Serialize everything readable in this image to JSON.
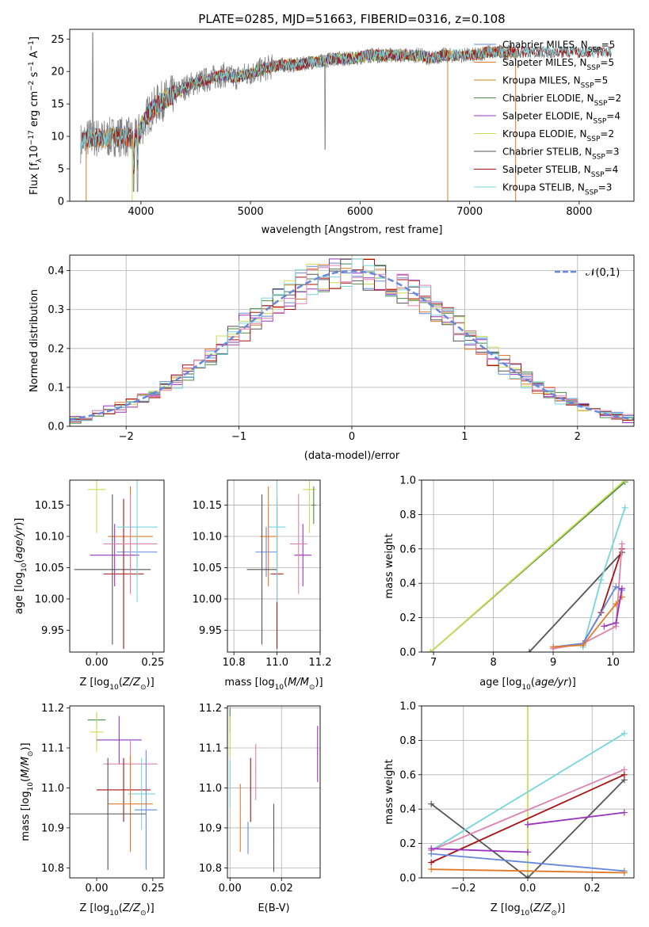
{
  "figure_title": "PLATE=0285, MJD=51663, FIBERID=0316, z=0.108",
  "series_colors": {
    "chabrier_miles": "#6688dd",
    "salpeter_miles": "#e07a2a",
    "kroupa_miles": "#cc8822",
    "chabrier_elodie": "#4a8a4a",
    "salpeter_elodie": "#9933bb",
    "kroupa_elodie": "#ccdd55",
    "chabrier_stelib": "#555555",
    "salpeter_stelib": "#aa1111",
    "kroupa_stelib": "#77d5dd",
    "pink": "#e080b0"
  },
  "chart_data": [
    {
      "id": "spectrum",
      "type": "line",
      "xlabel": "wavelength [Angstrom, rest frame]",
      "ylabel": "Flux [f_λ 10^-17 erg cm^-2 s^-1 A^-1]",
      "xlim": [
        3350,
        8500
      ],
      "ylim": [
        0,
        26.5
      ],
      "xticks": [
        4000,
        5000,
        6000,
        7000,
        8000
      ],
      "yticks": [
        0,
        5,
        10,
        15,
        20,
        25
      ],
      "grid": false,
      "legend_position": "right",
      "legend": [
        "Chabrier MILES, N_SSP=5",
        "Salpeter MILES, N_SSP=5",
        "Kroupa MILES, N_SSP=5",
        "Chabrier ELODIE, N_SSP=2",
        "Salpeter ELODIE, N_SSP=4",
        "Kroupa ELODIE, N_SSP=2",
        "Chabrier STELIB, N_SSP=3",
        "Salpeter STELIB, N_SSP=4",
        "Kroupa STELIB, N_SSP=3"
      ],
      "data_curve": {
        "x": [
          3450,
          3550,
          3650,
          3750,
          3850,
          3950,
          4050,
          4150,
          4250,
          4350,
          4450,
          4550,
          4650,
          4750,
          4850,
          4950,
          5050,
          5150,
          5250,
          5350,
          5450,
          5550,
          5650,
          5750,
          5850,
          5950,
          6050,
          6150,
          6250,
          6350,
          6450,
          6550,
          6650,
          6750,
          6850,
          6950,
          7050,
          7150,
          7250,
          7350,
          7450,
          7550,
          7650,
          7750,
          7850,
          7950,
          8050,
          8150,
          8250
        ],
        "y": [
          9,
          10,
          9.5,
          10,
          10,
          9.5,
          13,
          15,
          16,
          17,
          18,
          18.5,
          19,
          19.5,
          19,
          19.5,
          20,
          20.5,
          21,
          21,
          21,
          21.5,
          21.5,
          22,
          22,
          22,
          22.5,
          22.5,
          22.5,
          22.5,
          22.5,
          22.5,
          22,
          22.5,
          22.5,
          22.5,
          22.5,
          23,
          23,
          23,
          23,
          23,
          23,
          23,
          23,
          23,
          23,
          23,
          23
        ]
      }
    },
    {
      "id": "residuals",
      "type": "histogram",
      "xlabel": "(data-model)/error",
      "ylabel": "Normed distribution",
      "xlim": [
        -2.5,
        2.5
      ],
      "ylim": [
        0,
        0.44
      ],
      "xticks": [
        -2,
        -1,
        0,
        1,
        2
      ],
      "yticks": [
        0.0,
        0.1,
        0.2,
        0.3,
        0.4
      ],
      "grid": true,
      "legend": [
        "𝒩(0,1)"
      ],
      "legend_position": "top-right",
      "bin_width": 0.1,
      "bin_start": -2.5
    },
    {
      "id": "age_vs_Z",
      "type": "scatter",
      "xlabel": "Z [log10(Z/Z⊙)]",
      "ylabel": "age  [log10(age/yr)]",
      "xlim": [
        -0.12,
        0.3
      ],
      "ylim": [
        9.915,
        10.19
      ],
      "xticks": [
        0.0,
        0.25
      ],
      "yticks": [
        9.95,
        10.0,
        10.05,
        10.1,
        10.15
      ],
      "grid": false,
      "points": [
        {
          "x": 0.18,
          "y": 10.075,
          "xerr": 0.09,
          "yerr": 0.04,
          "series": "chabrier_miles"
        },
        {
          "x": 0.15,
          "y": 10.1,
          "xerr": 0.1,
          "yerr": 0.08,
          "series": "salpeter_miles"
        },
        {
          "x": 0.08,
          "y": 10.07,
          "xerr": 0.11,
          "yerr": 0.05,
          "series": "salpeter_elodie"
        },
        {
          "x": 0.0,
          "y": 10.175,
          "xerr": 0.04,
          "yerr": 0.07,
          "series": "kroupa_elodie"
        },
        {
          "x": 0.07,
          "y": 10.047,
          "xerr": 0.17,
          "yerr": 0.12,
          "series": "chabrier_stelib"
        },
        {
          "x": 0.12,
          "y": 10.04,
          "xerr": 0.09,
          "yerr": 0.12,
          "series": "salpeter_stelib"
        },
        {
          "x": 0.18,
          "y": 10.115,
          "xerr": 0.09,
          "yerr": 0.12,
          "series": "kroupa_stelib"
        },
        {
          "x": 0.15,
          "y": 10.088,
          "xerr": 0.12,
          "yerr": 0.08,
          "series": "pink"
        }
      ]
    },
    {
      "id": "age_vs_mass",
      "type": "scatter",
      "xlabel": "mass [log10(M/M⊙)]",
      "ylabel": "",
      "xlim": [
        10.77,
        11.2
      ],
      "ylim": [
        9.915,
        10.19
      ],
      "xticks": [
        10.8,
        11.0,
        11.2
      ],
      "yticks": [
        9.95,
        10.0,
        10.05,
        10.1,
        10.15
      ],
      "grid": true,
      "points": [
        {
          "x": 10.95,
          "y": 10.075,
          "xerr": 0.05,
          "yerr": 0.04,
          "series": "chabrier_miles"
        },
        {
          "x": 10.96,
          "y": 10.1,
          "xerr": 0.04,
          "yerr": 0.08,
          "series": "salpeter_miles"
        },
        {
          "x": 11.12,
          "y": 10.07,
          "xerr": 0.04,
          "yerr": 0.05,
          "series": "salpeter_elodie"
        },
        {
          "x": 11.15,
          "y": 10.175,
          "xerr": 0.03,
          "yerr": 0.07,
          "series": "kroupa_elodie"
        },
        {
          "x": 11.17,
          "y": 10.15,
          "xerr": 0.01,
          "yerr": 0.03,
          "series": "chabrier_elodie"
        },
        {
          "x": 10.93,
          "y": 10.047,
          "xerr": 0.07,
          "yerr": 0.12,
          "series": "chabrier_stelib"
        },
        {
          "x": 11.0,
          "y": 10.04,
          "xerr": 0.03,
          "yerr": 0.12,
          "series": "salpeter_stelib"
        },
        {
          "x": 11.0,
          "y": 10.115,
          "xerr": 0.04,
          "yerr": 0.12,
          "series": "kroupa_stelib"
        },
        {
          "x": 11.1,
          "y": 10.088,
          "xerr": 0.04,
          "yerr": 0.08,
          "series": "pink"
        }
      ]
    },
    {
      "id": "weight_vs_age",
      "type": "line",
      "xlabel": "age  [log10(age/yr)]",
      "ylabel": "mass weight",
      "xlim": [
        6.8,
        10.35
      ],
      "ylim": [
        0,
        1.0
      ],
      "xticks": [
        7,
        8,
        9,
        10
      ],
      "yticks": [
        0.0,
        0.2,
        0.4,
        0.6,
        0.8,
        1.0
      ],
      "grid": true,
      "series": [
        {
          "series": "chabrier_elodie",
          "x": [
            6.95,
            10.2
          ],
          "y": [
            0.0,
            0.99
          ]
        },
        {
          "series": "kroupa_elodie",
          "x": [
            6.95,
            10.2
          ],
          "y": [
            0.0,
            1.0
          ]
        },
        {
          "series": "chabrier_stelib",
          "x": [
            8.6,
            10.15
          ],
          "y": [
            0.0,
            0.58
          ]
        },
        {
          "series": "kroupa_stelib",
          "x": [
            9.5,
            9.8,
            10.2
          ],
          "y": [
            0.03,
            0.42,
            0.84
          ]
        },
        {
          "series": "salpeter_stelib",
          "x": [
            9.5,
            9.8,
            10.15
          ],
          "y": [
            0.05,
            0.23,
            0.6
          ]
        },
        {
          "series": "pink",
          "x": [
            9.0,
            9.5,
            10.05,
            10.15
          ],
          "y": [
            0.02,
            0.05,
            0.15,
            0.63
          ]
        },
        {
          "series": "chabrier_miles",
          "x": [
            9.0,
            9.5,
            10.05,
            10.15
          ],
          "y": [
            0.03,
            0.05,
            0.38,
            0.36
          ]
        },
        {
          "series": "salpeter_miles",
          "x": [
            9.0,
            9.5,
            10.05,
            10.15
          ],
          "y": [
            0.03,
            0.04,
            0.28,
            0.32
          ]
        },
        {
          "series": "salpeter_elodie",
          "x": [
            9.85,
            10.05,
            10.15
          ],
          "y": [
            0.15,
            0.17,
            0.37
          ]
        }
      ]
    },
    {
      "id": "mass_vs_Z",
      "type": "scatter",
      "xlabel": "Z [log10(Z/Z⊙)]",
      "ylabel": "mass [log10(M/M⊙)]",
      "xlim": [
        -0.12,
        0.3
      ],
      "ylim": [
        10.775,
        11.205
      ],
      "xticks": [
        0.0,
        0.25
      ],
      "yticks": [
        10.8,
        10.9,
        11.0,
        11.1,
        11.2
      ],
      "grid": false,
      "points": [
        {
          "x": 0.0,
          "y": 11.17,
          "xerr": 0.04,
          "yerr": 0.02,
          "series": "chabrier_elodie"
        },
        {
          "x": 0.0,
          "y": 11.14,
          "xerr": 0.03,
          "yerr": 0.05,
          "series": "kroupa_elodie"
        },
        {
          "x": 0.1,
          "y": 11.12,
          "xerr": 0.1,
          "yerr": 0.06,
          "series": "salpeter_elodie"
        },
        {
          "x": 0.15,
          "y": 11.06,
          "xerr": 0.12,
          "yerr": 0.06,
          "series": "pink"
        },
        {
          "x": 0.12,
          "y": 10.995,
          "xerr": 0.12,
          "yerr": 0.08,
          "series": "salpeter_stelib"
        },
        {
          "x": 0.2,
          "y": 10.985,
          "xerr": 0.06,
          "yerr": 0.09,
          "series": "kroupa_stelib"
        },
        {
          "x": 0.15,
          "y": 10.96,
          "xerr": 0.1,
          "yerr": 0.12,
          "series": "salpeter_miles"
        },
        {
          "x": 0.22,
          "y": 10.945,
          "xerr": 0.05,
          "yerr": 0.15,
          "series": "chabrier_miles"
        },
        {
          "x": 0.05,
          "y": 10.935,
          "xerr": 0.17,
          "yerr": 0.14,
          "series": "chabrier_stelib"
        }
      ]
    },
    {
      "id": "mass_vs_ebv",
      "type": "scatter",
      "xlabel": "E(B-V)",
      "ylabel": "",
      "xlim": [
        -0.001,
        0.035
      ],
      "ylim": [
        10.775,
        11.205
      ],
      "xticks": [
        0.0,
        0.02
      ],
      "yticks": [
        10.8,
        10.9,
        11.0,
        11.1,
        11.2
      ],
      "grid": true,
      "points": [
        {
          "x": 0.0,
          "y": 11.17,
          "xerr": 0,
          "yerr": 0.03,
          "series": "chabrier_elodie"
        },
        {
          "x": 0.0,
          "y": 11.13,
          "xerr": 0,
          "yerr": 0.05,
          "series": "kroupa_elodie"
        },
        {
          "x": 0.0,
          "y": 11.01,
          "xerr": 0,
          "yerr": 0.06,
          "series": "kroupa_stelib"
        },
        {
          "x": 0.004,
          "y": 10.925,
          "xerr": 0,
          "yerr": 0.085,
          "series": "salpeter_miles"
        },
        {
          "x": 0.007,
          "y": 10.875,
          "xerr": 0,
          "yerr": 0.04,
          "series": "chabrier_miles"
        },
        {
          "x": 0.008,
          "y": 10.995,
          "xerr": 0,
          "yerr": 0.08,
          "series": "salpeter_stelib"
        },
        {
          "x": 0.01,
          "y": 11.04,
          "xerr": 0,
          "yerr": 0.07,
          "series": "pink"
        },
        {
          "x": 0.017,
          "y": 10.875,
          "xerr": 0,
          "yerr": 0.085,
          "series": "chabrier_stelib"
        },
        {
          "x": 0.034,
          "y": 11.085,
          "xerr": 0,
          "yerr": 0.07,
          "series": "salpeter_elodie"
        }
      ]
    },
    {
      "id": "weight_vs_Z",
      "type": "line",
      "xlabel": "Z [log10(Z/Z⊙)]",
      "ylabel": "mass weight",
      "xlim": [
        -0.33,
        0.33
      ],
      "ylim": [
        0,
        1.0
      ],
      "xticks": [
        -0.2,
        0.0,
        0.2
      ],
      "yticks": [
        0.0,
        0.2,
        0.4,
        0.6,
        0.8,
        1.0
      ],
      "grid": true,
      "series": [
        {
          "series": "kroupa_elodie",
          "x": [
            0.0,
            0.0
          ],
          "y": [
            0.0,
            1.0
          ]
        },
        {
          "series": "chabrier_stelib",
          "x": [
            -0.3,
            0.0,
            0.3
          ],
          "y": [
            0.43,
            0.0,
            0.57
          ]
        },
        {
          "series": "kroupa_stelib",
          "x": [
            -0.3,
            0.3
          ],
          "y": [
            0.16,
            0.84
          ]
        },
        {
          "series": "pink",
          "x": [
            -0.3,
            0.3
          ],
          "y": [
            0.16,
            0.63
          ]
        },
        {
          "series": "salpeter_stelib",
          "x": [
            -0.3,
            0.3
          ],
          "y": [
            0.09,
            0.6
          ]
        },
        {
          "series": "salpeter_elodie",
          "x": [
            -0.3,
            0.0
          ],
          "y": [
            0.17,
            0.15
          ]
        },
        {
          "series": "salpeter_elodie",
          "x": [
            0.0,
            0.3
          ],
          "y": [
            0.31,
            0.38
          ]
        },
        {
          "series": "chabrier_miles",
          "x": [
            -0.3,
            0.3
          ],
          "y": [
            0.14,
            0.04
          ]
        },
        {
          "series": "salpeter_miles",
          "x": [
            -0.3,
            0.3
          ],
          "y": [
            0.05,
            0.03
          ]
        }
      ]
    }
  ]
}
